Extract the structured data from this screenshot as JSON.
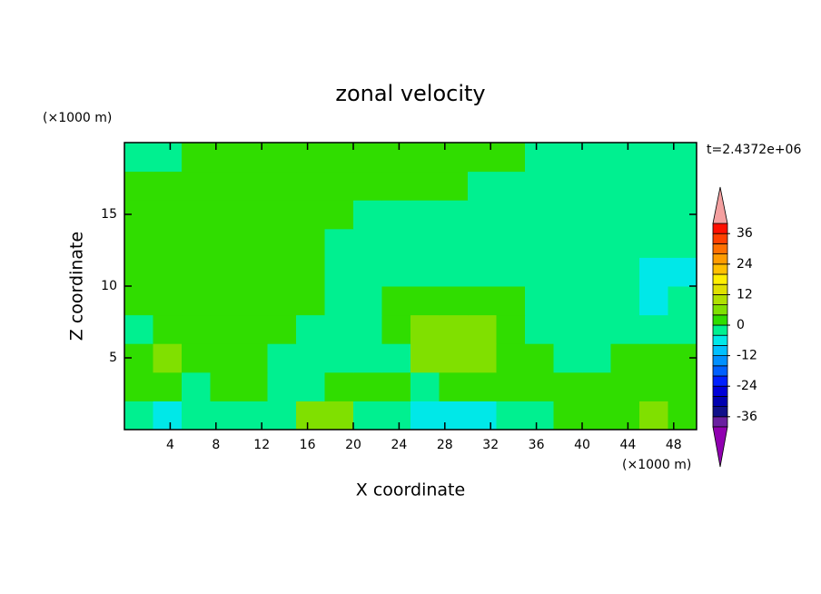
{
  "chart_data": {
    "type": "contour",
    "title": "zonal velocity",
    "xlabel": "X coordinate",
    "ylabel": "Z coordinate",
    "x_unit_label": "(×1000 m)",
    "y_unit_label": "(×1000 m)",
    "annotation": "t=2.4372e+06",
    "xlim": [
      0,
      50
    ],
    "ylim": [
      0,
      20
    ],
    "xticks": [
      4,
      8,
      12,
      16,
      20,
      24,
      28,
      32,
      36,
      40,
      44,
      48
    ],
    "yticks": [
      5,
      10,
      15
    ],
    "x": [
      1.25,
      3.75,
      6.25,
      8.75,
      11.25,
      13.75,
      16.25,
      18.75,
      21.25,
      23.75,
      26.25,
      28.75,
      31.25,
      33.75,
      36.25,
      38.75,
      41.25,
      43.75,
      46.25,
      48.75
    ],
    "y": [
      1,
      3,
      5,
      7,
      9,
      11,
      13,
      15,
      17,
      19
    ],
    "z": [
      [
        -2,
        -6,
        -2,
        -2,
        -2,
        -2,
        6,
        6,
        -2,
        -2,
        -6,
        -6,
        -6,
        -2,
        -2,
        2,
        2,
        2,
        6,
        2
      ],
      [
        2,
        2,
        -2,
        2,
        2,
        -2,
        -2,
        2,
        2,
        2,
        -2,
        2,
        2,
        2,
        2,
        2,
        2,
        2,
        2,
        2
      ],
      [
        2,
        6,
        2,
        2,
        2,
        -2,
        -2,
        -2,
        -2,
        -2,
        6,
        6,
        6,
        2,
        2,
        -2,
        -2,
        2,
        2,
        2
      ],
      [
        -2,
        2,
        2,
        2,
        2,
        2,
        -2,
        -2,
        -2,
        2,
        6,
        6,
        6,
        2,
        -2,
        -2,
        -2,
        -2,
        -2,
        -2
      ],
      [
        2,
        2,
        2,
        2,
        2,
        2,
        2,
        -2,
        -2,
        2,
        2,
        2,
        2,
        2,
        -2,
        -2,
        -2,
        -2,
        -6,
        -2
      ],
      [
        2,
        2,
        2,
        2,
        2,
        2,
        2,
        -2,
        -2,
        -2,
        -2,
        -2,
        -2,
        -2,
        -2,
        -2,
        -2,
        -2,
        -6,
        -6
      ],
      [
        2,
        2,
        2,
        2,
        2,
        2,
        2,
        -2,
        -2,
        -2,
        -2,
        -2,
        -2,
        -2,
        -2,
        -2,
        -2,
        -2,
        -2,
        -2
      ],
      [
        2,
        2,
        2,
        2,
        2,
        2,
        2,
        2,
        -2,
        -2,
        -2,
        -2,
        -2,
        -2,
        -2,
        -2,
        -2,
        -2,
        -2,
        -2
      ],
      [
        2,
        2,
        2,
        2,
        2,
        2,
        2,
        2,
        2,
        2,
        2,
        2,
        -2,
        -2,
        -2,
        -2,
        -2,
        -2,
        -2,
        -2
      ],
      [
        -2,
        -2,
        2,
        2,
        2,
        2,
        2,
        2,
        2,
        2,
        2,
        2,
        2,
        2,
        -2,
        -2,
        -2,
        -2,
        -2,
        -2
      ]
    ],
    "colorbar": {
      "lim": [
        -40,
        40
      ],
      "ticks": [
        -36,
        -24,
        -12,
        0,
        12,
        24,
        36
      ],
      "colors": [
        "#6a1fa0",
        "#10108a",
        "#0000b0",
        "#0000d8",
        "#0020ff",
        "#0060ff",
        "#0090ff",
        "#00c0ff",
        "#00e8e8",
        "#00f090",
        "#30dd00",
        "#80e000",
        "#b0e000",
        "#e0e000",
        "#ffee00",
        "#ffc000",
        "#ff9c00",
        "#ff7000",
        "#ff4000",
        "#ff1000"
      ],
      "over_color": "#f4a0a0",
      "under_color": "#9000b0"
    }
  }
}
